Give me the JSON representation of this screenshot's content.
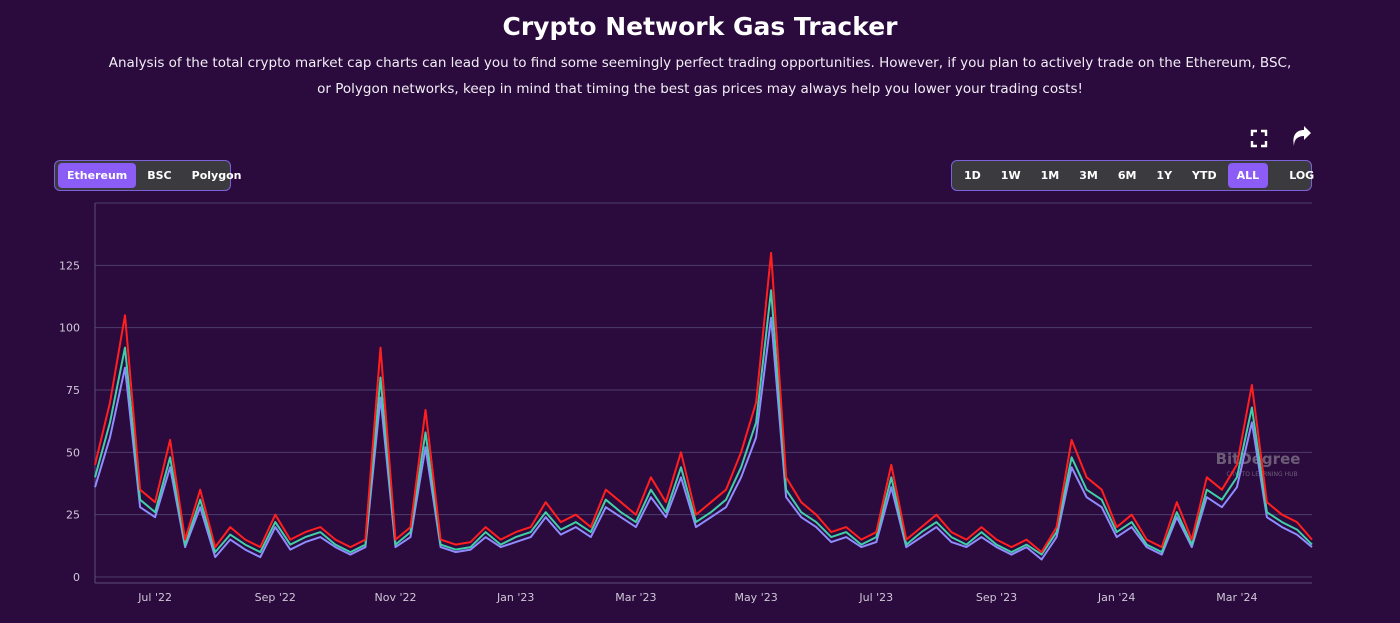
{
  "header": {
    "title": "Crypto Network Gas Tracker",
    "subtitle_lines": [
      "Analysis of the total crypto market cap charts can lead you to find some seemingly perfect trading opportunities. However, if you plan to actively trade on the Ethereum, BSC,",
      "or Polygon networks, keep in mind that timing the best gas prices may always help you lower your trading costs!"
    ]
  },
  "networks": {
    "buttons": [
      "Ethereum",
      "BSC",
      "Polygon"
    ],
    "active_index": 0
  },
  "ranges": {
    "buttons": [
      "1D",
      "1W",
      "1M",
      "3M",
      "6M",
      "1Y",
      "YTD",
      "ALL"
    ],
    "active_index": 7,
    "log_button": "LOG"
  },
  "watermark": {
    "name": "BitDegree",
    "tagline": "CRYPTO LEARNING HUB"
  },
  "chart_data": {
    "type": "line",
    "categories": [
      null,
      null,
      null,
      null,
      "Jul '22",
      null,
      null,
      null,
      null,
      null,
      null,
      null,
      "Sep '22",
      null,
      null,
      null,
      null,
      null,
      null,
      null,
      "Nov '22",
      null,
      null,
      null,
      null,
      null,
      null,
      null,
      "Jan '23",
      null,
      null,
      null,
      null,
      null,
      null,
      null,
      "Mar '23",
      null,
      null,
      null,
      null,
      null,
      null,
      null,
      "May '23",
      null,
      null,
      null,
      null,
      null,
      null,
      null,
      "Jul '23",
      null,
      null,
      null,
      null,
      null,
      null,
      null,
      "Sep '23",
      null,
      null,
      null,
      null,
      null,
      null,
      null,
      "Jan '24",
      null,
      null,
      null,
      null,
      null,
      null,
      null,
      "Mar '24",
      null,
      null,
      null,
      null,
      null
    ],
    "series": [
      {
        "color": "#8f8cff",
        "values": [
          36,
          56,
          84,
          28,
          24,
          44,
          12,
          28,
          8,
          15,
          11,
          8,
          20,
          11,
          14,
          16,
          12,
          9,
          12,
          72,
          12,
          16,
          52,
          12,
          10,
          11,
          16,
          12,
          14,
          16,
          24,
          17,
          20,
          16,
          28,
          24,
          20,
          32,
          24,
          40,
          20,
          24,
          28,
          40,
          56,
          104,
          32,
          24,
          20,
          14,
          16,
          12,
          14,
          36,
          12,
          16,
          20,
          14,
          12,
          16,
          12,
          9,
          12,
          7,
          16,
          44,
          32,
          28,
          16,
          20,
          12,
          9,
          24,
          12,
          32,
          28,
          36,
          62,
          24,
          20,
          17,
          12
        ]
      },
      {
        "color": "#3fd0a8",
        "values": [
          40,
          62,
          92,
          31,
          26,
          48,
          13,
          31,
          10,
          17,
          13,
          10,
          22,
          13,
          16,
          18,
          13,
          10,
          13,
          80,
          13,
          18,
          58,
          13,
          11,
          12,
          18,
          13,
          16,
          18,
          26,
          19,
          22,
          18,
          31,
          26,
          22,
          35,
          26,
          44,
          22,
          26,
          31,
          44,
          62,
          115,
          35,
          26,
          22,
          16,
          18,
          13,
          16,
          40,
          13,
          18,
          22,
          16,
          13,
          18,
          13,
          10,
          13,
          9,
          18,
          48,
          35,
          31,
          18,
          22,
          13,
          10,
          26,
          13,
          35,
          31,
          40,
          68,
          26,
          22,
          19,
          13
        ]
      },
      {
        "color": "#ff1f1f",
        "values": [
          45,
          70,
          105,
          35,
          30,
          55,
          15,
          35,
          12,
          20,
          15,
          12,
          25,
          15,
          18,
          20,
          15,
          12,
          15,
          92,
          15,
          20,
          67,
          15,
          13,
          14,
          20,
          15,
          18,
          20,
          30,
          22,
          25,
          20,
          35,
          30,
          25,
          40,
          30,
          50,
          25,
          30,
          35,
          50,
          70,
          130,
          40,
          30,
          25,
          18,
          20,
          15,
          18,
          45,
          15,
          20,
          25,
          18,
          15,
          20,
          15,
          12,
          15,
          10,
          20,
          55,
          40,
          35,
          20,
          25,
          15,
          12,
          30,
          15,
          40,
          35,
          45,
          77,
          30,
          25,
          22,
          15
        ]
      }
    ],
    "ylim": [
      0,
      150
    ],
    "yticks": [
      0,
      25,
      50,
      75,
      100,
      125
    ],
    "grid": true
  }
}
